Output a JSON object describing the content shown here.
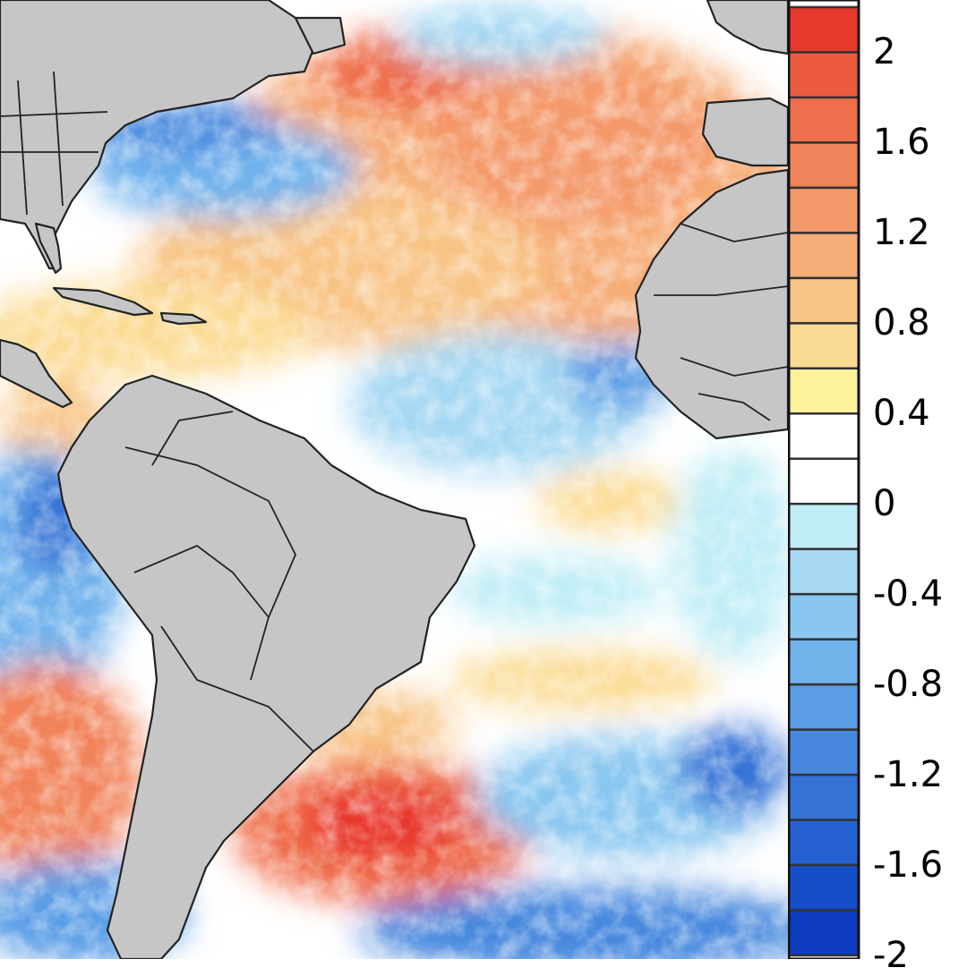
{
  "map": {
    "features": {
      "land_color": "#c6c6c6",
      "border_color": "#222222",
      "ocean_base_color": "#ffffff"
    },
    "anomaly_regions": [
      {
        "region": "north-atlantic",
        "value": 1.0
      },
      {
        "region": "gulf-stream",
        "value": -1.2
      },
      {
        "region": "caribbean",
        "value": 0.6
      },
      {
        "region": "tropical-atlantic",
        "value": -0.4
      },
      {
        "region": "south-atlantic",
        "value": 0.0
      },
      {
        "region": "southwest-atlantic",
        "value": 2.0
      },
      {
        "region": "southeast-pacific",
        "value": -0.9
      },
      {
        "region": "south-pacific",
        "value": 1.4
      },
      {
        "region": "southern-ocean",
        "value": -1.4
      }
    ]
  },
  "colorbar": {
    "levels": [
      {
        "color": "#e8392e"
      },
      {
        "color": "#ec5a40"
      },
      {
        "color": "#ef6e4c"
      },
      {
        "color": "#f1835a"
      },
      {
        "color": "#f4996a"
      },
      {
        "color": "#f6ad78"
      },
      {
        "color": "#f8c486"
      },
      {
        "color": "#fbdb94"
      },
      {
        "color": "#fdf19c"
      },
      {
        "color": "#ffffff"
      },
      {
        "color": "#ffffff"
      },
      {
        "color": "#c0edf6"
      },
      {
        "color": "#a6d8f3"
      },
      {
        "color": "#8ac7f0"
      },
      {
        "color": "#72b3ec"
      },
      {
        "color": "#5b9ee6"
      },
      {
        "color": "#4788de"
      },
      {
        "color": "#3572d6"
      },
      {
        "color": "#2560d0"
      },
      {
        "color": "#164ec8"
      },
      {
        "color": "#0c3cbd"
      }
    ],
    "tick_labels": [
      "2",
      "1.6",
      "1.2",
      "0.8",
      "0.4",
      "0",
      "-0.4",
      "-0.8",
      "-1.2",
      "-1.6",
      "-2"
    ]
  }
}
